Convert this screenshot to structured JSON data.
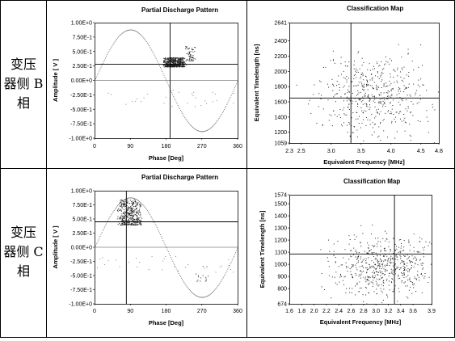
{
  "rows": [
    {
      "label_lines": [
        "变压",
        "器侧 B",
        "相"
      ]
    },
    {
      "label_lines": [
        "变压",
        "器侧 C",
        "相"
      ]
    }
  ],
  "chart_data": [
    {
      "type": "scatter",
      "title": "Partial Discharge Pattern",
      "xlabel": "Phase [Deg]",
      "ylabel": "Amplitude [ V ]",
      "xlim": [
        0,
        360
      ],
      "ylim": [
        -1.0,
        1.0
      ],
      "xticks": [
        0,
        90,
        180,
        270,
        360
      ],
      "yticks": [
        "1.00E+0",
        "7.50E-1",
        "5.00E-1",
        "2.50E-1",
        "0.00E+0",
        "-2.50E-1",
        "-5.00E-1",
        "-7.50E-1",
        "-1.00E+0"
      ],
      "reference_sine": true,
      "cursor": {
        "x": 190,
        "y": 0.28
      },
      "clusters": [
        {
          "x_range": [
            170,
            230
          ],
          "y_range": [
            0.24,
            0.4
          ],
          "count": 520
        },
        {
          "x_range": [
            225,
            255
          ],
          "y_range": [
            0.34,
            0.6
          ],
          "count": 60
        }
      ]
    },
    {
      "type": "scatter",
      "title": "Classification Map",
      "xlabel": "Equivalent Frequency [MHz]",
      "ylabel": "Equivalent Timelength [ns]",
      "xlim": [
        2.3,
        4.8
      ],
      "ylim": [
        1059,
        2641
      ],
      "xticks": [
        "2.3",
        "2.5",
        "3.0",
        "3.5",
        "4.0",
        "4.5",
        "4.8"
      ],
      "yticks": [
        "2641",
        "2400",
        "2200",
        "2000",
        "1800",
        "1600",
        "1400",
        "1200",
        "1059"
      ],
      "cursor": {
        "x": 3.33,
        "y": 1650
      },
      "clusters": [
        {
          "x_center": 3.7,
          "y_center": 1680,
          "x_spread": 0.45,
          "y_spread": 260,
          "count": 520
        }
      ]
    },
    {
      "type": "scatter",
      "title": "Partial Discharge Pattern",
      "xlabel": "Phase [Deg]",
      "ylabel": "Amplitude [ V ]",
      "xlim": [
        0,
        360
      ],
      "ylim": [
        -1.0,
        1.0
      ],
      "xticks": [
        0,
        90,
        180,
        270,
        360
      ],
      "yticks": [
        "1.00E+0",
        "7.50E-1",
        "5.00E-1",
        "2.50E-1",
        "0.00E+0",
        "-2.50E-1",
        "-5.00E-1",
        "-7.50E-1",
        "-1.00E+0"
      ],
      "reference_sine": true,
      "cursor": {
        "x": 80,
        "y": 0.45
      },
      "clusters": [
        {
          "x_range": [
            55,
            120
          ],
          "y_range": [
            0.4,
            0.85
          ],
          "count": 420
        },
        {
          "x_range": [
            240,
            290
          ],
          "y_range": [
            -0.6,
            -0.3
          ],
          "count": 15
        }
      ]
    },
    {
      "type": "scatter",
      "title": "Classification Map",
      "xlabel": "Equivalent Frequency [MHz]",
      "ylabel": "Equivalent Timelength [ns]",
      "xlim": [
        1.6,
        3.9
      ],
      "ylim": [
        674,
        1574
      ],
      "xticks": [
        "1.6",
        "1.8",
        "2.0",
        "2.2",
        "2.4",
        "2.6",
        "2.8",
        "3.0",
        "3.2",
        "3.4",
        "3.6",
        "3.9"
      ],
      "yticks": [
        "1574",
        "1500",
        "1400",
        "1300",
        "1200",
        "1100",
        "1000",
        "900",
        "800",
        "674"
      ],
      "cursor": {
        "x": 3.3,
        "y": 1085
      },
      "clusters": [
        {
          "x_center": 3.1,
          "y_center": 980,
          "x_spread": 0.38,
          "y_spread": 120,
          "count": 600
        }
      ]
    }
  ]
}
